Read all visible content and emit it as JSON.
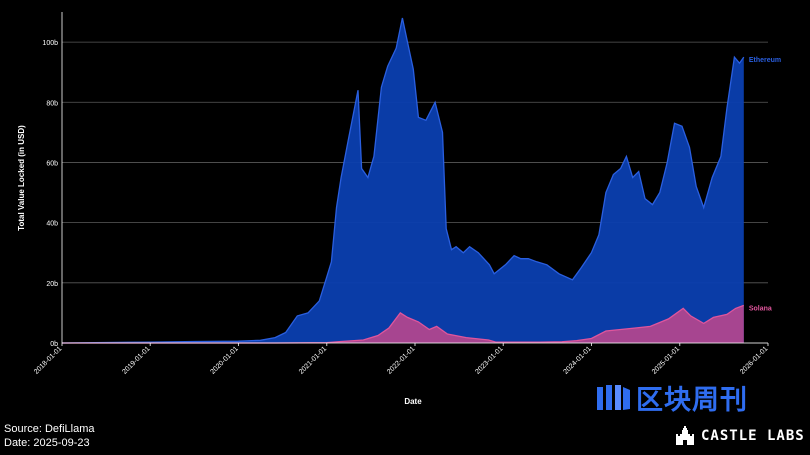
{
  "chart_data": {
    "type": "area",
    "title": "",
    "xlabel": "Date",
    "ylabel": "Total Value Locked (in USD)",
    "ylim": [
      0,
      110
    ],
    "y_unit": "b",
    "grid": true,
    "yticks": [
      "0b",
      "20b",
      "40b",
      "60b",
      "80b",
      "100b"
    ],
    "ytick_values": [
      0,
      20,
      40,
      60,
      80,
      100
    ],
    "xlim": [
      "2018-01-01",
      "2026-01-01"
    ],
    "xticks": [
      "2018-01-01",
      "2019-01-01",
      "2020-01-01",
      "2021-01-01",
      "2022-01-01",
      "2023-01-01",
      "2024-01-01",
      "2025-01-01",
      "2026-01-01"
    ],
    "legend_placement": "inline-right",
    "series": [
      {
        "name": "Ethereum",
        "color": "#2a5fe0",
        "fill": "#0b3fb0",
        "points": [
          [
            "2018-01-01",
            0
          ],
          [
            "2019-01-01",
            0.3
          ],
          [
            "2019-07-01",
            0.5
          ],
          [
            "2020-01-01",
            0.6
          ],
          [
            "2020-04-01",
            0.9
          ],
          [
            "2020-06-01",
            1.8
          ],
          [
            "2020-07-15",
            3.5
          ],
          [
            "2020-09-01",
            9
          ],
          [
            "2020-10-15",
            10
          ],
          [
            "2020-12-01",
            14
          ],
          [
            "2021-01-01",
            22
          ],
          [
            "2021-01-20",
            27
          ],
          [
            "2021-02-10",
            45
          ],
          [
            "2021-03-01",
            55
          ],
          [
            "2021-04-01",
            68
          ],
          [
            "2021-05-10",
            84
          ],
          [
            "2021-05-25",
            58
          ],
          [
            "2021-06-20",
            55
          ],
          [
            "2021-07-15",
            62
          ],
          [
            "2021-08-15",
            85
          ],
          [
            "2021-09-10",
            92
          ],
          [
            "2021-10-15",
            98
          ],
          [
            "2021-11-10",
            108
          ],
          [
            "2021-12-01",
            100
          ],
          [
            "2021-12-25",
            91
          ],
          [
            "2022-01-15",
            75
          ],
          [
            "2022-02-15",
            74
          ],
          [
            "2022-03-25",
            80
          ],
          [
            "2022-04-25",
            70
          ],
          [
            "2022-05-10",
            38
          ],
          [
            "2022-06-01",
            31
          ],
          [
            "2022-06-20",
            32
          ],
          [
            "2022-07-20",
            30
          ],
          [
            "2022-08-15",
            32
          ],
          [
            "2022-09-20",
            30
          ],
          [
            "2022-11-05",
            26
          ],
          [
            "2022-11-25",
            23
          ],
          [
            "2023-01-10",
            26
          ],
          [
            "2023-02-15",
            29
          ],
          [
            "2023-03-15",
            28
          ],
          [
            "2023-04-15",
            28
          ],
          [
            "2023-05-20",
            27
          ],
          [
            "2023-07-01",
            26
          ],
          [
            "2023-08-20",
            23
          ],
          [
            "2023-10-15",
            21
          ],
          [
            "2023-11-20",
            25
          ],
          [
            "2024-01-01",
            30
          ],
          [
            "2024-02-01",
            36
          ],
          [
            "2024-03-01",
            50
          ],
          [
            "2024-04-01",
            56
          ],
          [
            "2024-05-01",
            58
          ],
          [
            "2024-05-25",
            62
          ],
          [
            "2024-06-20",
            55
          ],
          [
            "2024-07-15",
            57
          ],
          [
            "2024-08-10",
            48
          ],
          [
            "2024-09-10",
            46
          ],
          [
            "2024-10-10",
            50
          ],
          [
            "2024-11-10",
            60
          ],
          [
            "2024-12-10",
            73
          ],
          [
            "2025-01-10",
            72
          ],
          [
            "2025-02-10",
            65
          ],
          [
            "2025-03-10",
            52
          ],
          [
            "2025-04-10",
            45
          ],
          [
            "2025-05-15",
            55
          ],
          [
            "2025-06-20",
            62
          ],
          [
            "2025-07-15",
            78
          ],
          [
            "2025-08-15",
            95
          ],
          [
            "2025-09-05",
            93
          ],
          [
            "2025-09-23",
            95
          ]
        ]
      },
      {
        "name": "Solana",
        "color": "#e0559c",
        "fill": "#b0468e",
        "points": [
          [
            "2018-01-01",
            0
          ],
          [
            "2020-06-01",
            0
          ],
          [
            "2021-01-01",
            0.1
          ],
          [
            "2021-03-01",
            0.5
          ],
          [
            "2021-06-01",
            1
          ],
          [
            "2021-08-01",
            2.5
          ],
          [
            "2021-09-15",
            5
          ],
          [
            "2021-11-01",
            10
          ],
          [
            "2021-12-01",
            8.5
          ],
          [
            "2022-01-15",
            7
          ],
          [
            "2022-03-01",
            4.5
          ],
          [
            "2022-04-01",
            5.5
          ],
          [
            "2022-05-15",
            3
          ],
          [
            "2022-08-01",
            1.8
          ],
          [
            "2022-11-01",
            1
          ],
          [
            "2022-12-01",
            0.3
          ],
          [
            "2023-06-01",
            0.3
          ],
          [
            "2023-09-01",
            0.4
          ],
          [
            "2023-11-01",
            0.8
          ],
          [
            "2024-01-01",
            1.5
          ],
          [
            "2024-03-01",
            4
          ],
          [
            "2024-05-01",
            4.5
          ],
          [
            "2024-07-01",
            5
          ],
          [
            "2024-09-01",
            5.5
          ],
          [
            "2024-11-15",
            8
          ],
          [
            "2025-01-15",
            11.5
          ],
          [
            "2025-02-15",
            9
          ],
          [
            "2025-04-10",
            6.5
          ],
          [
            "2025-05-20",
            8.5
          ],
          [
            "2025-07-15",
            9.5
          ],
          [
            "2025-08-20",
            11.5
          ],
          [
            "2025-09-23",
            12.5
          ]
        ]
      }
    ]
  },
  "footer": {
    "source": "Source: DefiLlama",
    "date": "Date: 2025-09-23"
  },
  "watermark": {
    "zh_text": "区块周刊",
    "en_text": "CASTLE LABS",
    "zh_icon": "book-logo-icon",
    "en_icon": "castle-icon"
  }
}
